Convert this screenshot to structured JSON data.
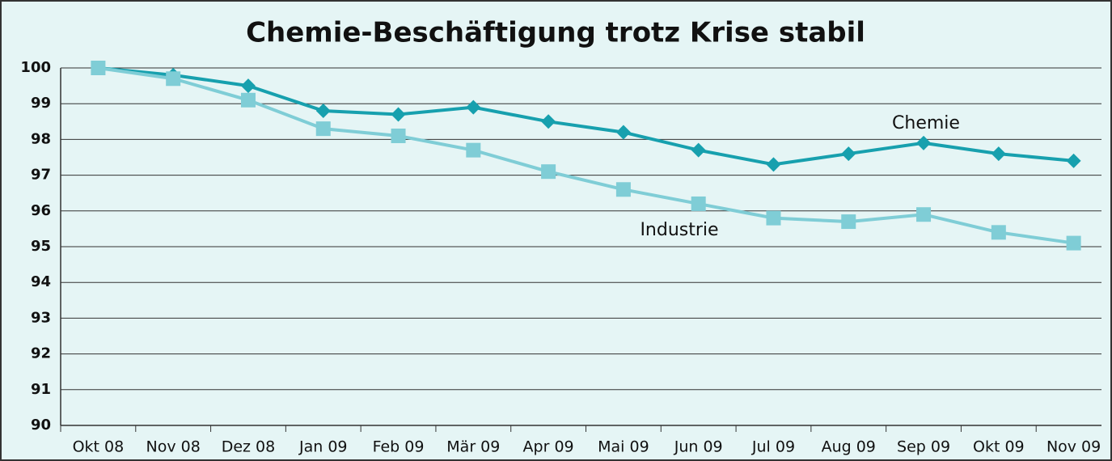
{
  "chart_data": {
    "type": "line",
    "title": "Chemie-Beschäftigung trotz Krise stabil",
    "categories": [
      "Okt 08",
      "Nov 08",
      "Dez 08",
      "Jan 09",
      "Feb 09",
      "Mär 09",
      "Apr 09",
      "Mai 09",
      "Jun 09",
      "Jul 09",
      "Aug 09",
      "Sep 09",
      "Okt 09",
      "Nov 09"
    ],
    "series": [
      {
        "name": "Chemie",
        "color": "#17a0ae",
        "marker": "diamond",
        "values": [
          100,
          99.8,
          99.5,
          98.8,
          98.7,
          98.9,
          98.5,
          98.2,
          97.7,
          97.3,
          97.6,
          97.9,
          97.6,
          97.4
        ]
      },
      {
        "name": "Industrie",
        "color": "#7fcdd6",
        "marker": "square",
        "values": [
          100,
          99.7,
          99.1,
          98.3,
          98.1,
          97.7,
          97.1,
          96.6,
          96.2,
          95.8,
          95.7,
          95.9,
          95.4,
          95.1
        ]
      }
    ],
    "ylim": [
      90,
      100
    ],
    "yticks": [
      90,
      91,
      92,
      93,
      94,
      95,
      96,
      97,
      98,
      99,
      100
    ],
    "grid": true
  }
}
